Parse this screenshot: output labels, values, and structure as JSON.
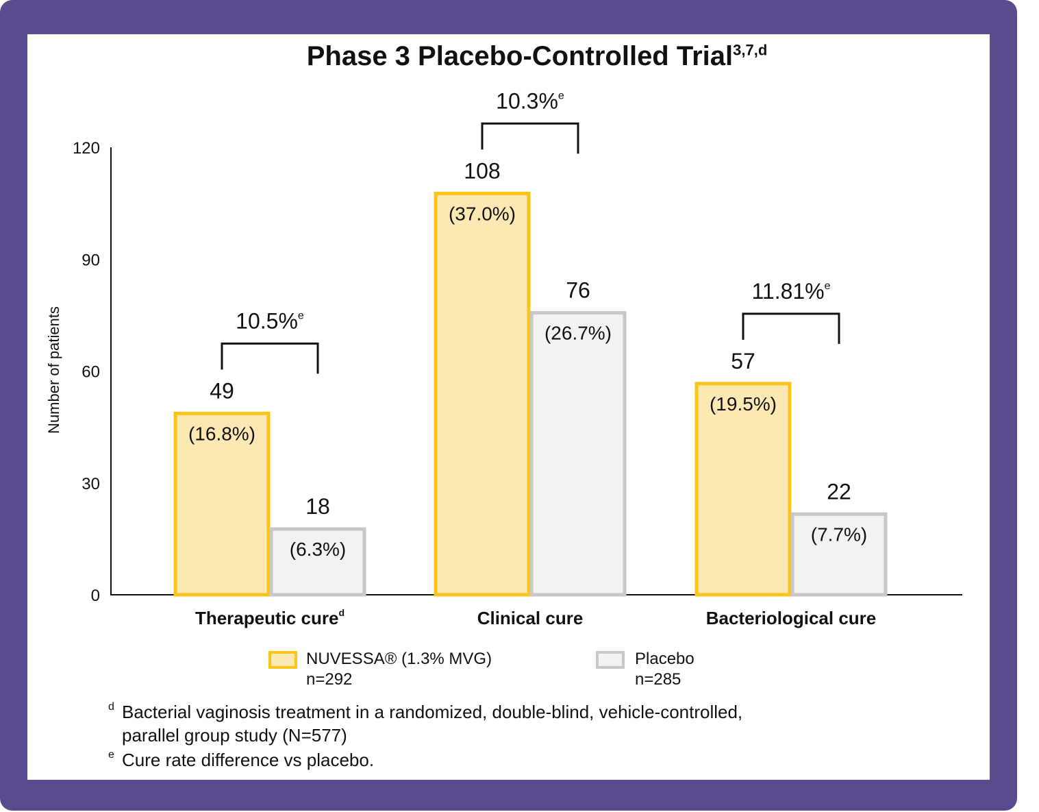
{
  "title": "Phase 3 Placebo-Controlled Trial",
  "title_sup": "3,7,d",
  "chart_data": {
    "type": "bar",
    "title": "Phase 3 Placebo-Controlled Trial",
    "ylabel": "Number of patients",
    "xlabel": "",
    "ylim": [
      0,
      120
    ],
    "yticks": [
      0,
      30,
      60,
      90,
      120
    ],
    "categories": [
      "Therapeutic cure",
      "Clinical cure",
      "Bacteriological cure"
    ],
    "category_sups": [
      "d",
      "",
      ""
    ],
    "series": [
      {
        "name": "NUVESSA® (1.3% MVG)",
        "values": [
          49,
          108,
          57
        ],
        "labels": [
          "(16.8%)",
          "(37.0%)",
          "(19.5%)"
        ],
        "fill": "#fde7b3",
        "stroke": "#fcc419"
      },
      {
        "name": "Placebo",
        "values": [
          18,
          76,
          22
        ],
        "labels": [
          "(6.3%)",
          "(26.7%)",
          "(7.7%)"
        ],
        "fill": "#f2f2f2",
        "stroke": "#c8c8c8"
      }
    ],
    "differences": [
      "10.5%",
      "10.3%",
      "11.81%"
    ],
    "difference_sup": "e"
  },
  "legend": [
    {
      "label": "NUVESSA® (1.3% MVG)",
      "sub": "n=292"
    },
    {
      "label": "Placebo",
      "sub": "n=285"
    }
  ],
  "footnotes": [
    {
      "mark": "d",
      "line1": "Bacterial vaginosis treatment in a randomized, double-blind, vehicle-controlled,",
      "line2": "parallel group study (N=577)"
    },
    {
      "mark": "e",
      "line1": "Cure rate difference vs placebo."
    }
  ],
  "colors": {
    "frame": "#5a4b8e",
    "accent": "#fcc419"
  }
}
